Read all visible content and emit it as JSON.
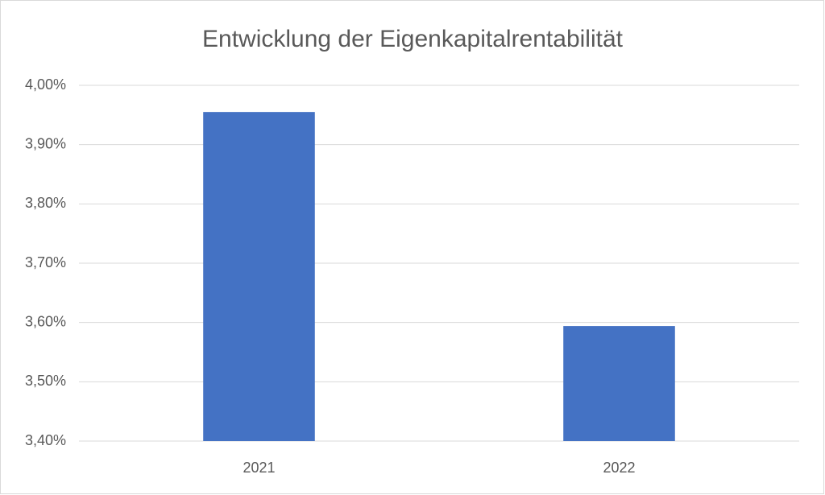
{
  "chart_data": {
    "type": "bar",
    "title": "Entwicklung der Eigenkapitalrentabilität",
    "categories": [
      "2021",
      "2022"
    ],
    "values": [
      3.955,
      3.594
    ],
    "color": "#4472c4",
    "ylim": [
      3.4,
      4.0
    ],
    "yticks": [
      {
        "value": 3.4,
        "label": "3,40%"
      },
      {
        "value": 3.5,
        "label": "3,50%"
      },
      {
        "value": 3.6,
        "label": "3,60%"
      },
      {
        "value": 3.7,
        "label": "3,70%"
      },
      {
        "value": 3.8,
        "label": "3,80%"
      },
      {
        "value": 3.9,
        "label": "3,90%"
      },
      {
        "value": 4.0,
        "label": "4,00%"
      }
    ],
    "grid": true
  }
}
